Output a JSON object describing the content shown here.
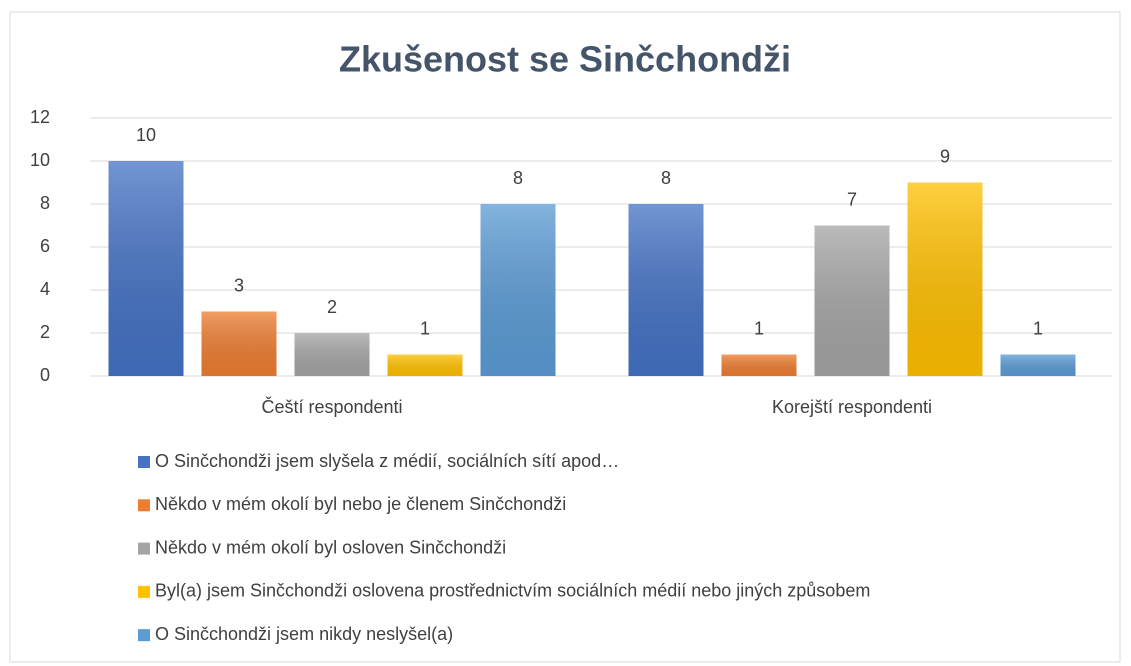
{
  "chart_data": {
    "type": "bar",
    "title": "Zkušenost se Sinčchondži",
    "categories": [
      "Čeští respondenti",
      "Korejští respondenti"
    ],
    "series": [
      {
        "name": "O Sinčchondži jsem slyšela z médií, sociálních sítí apod…",
        "color": "#4472c4",
        "values": [
          10,
          8
        ]
      },
      {
        "name": "Někdo v mém okolí byl nebo je členem Sinčchondži",
        "color": "#ed7d31",
        "values": [
          3,
          1
        ]
      },
      {
        "name": "Někdo v mém okolí byl osloven Sinčchondži",
        "color": "#a5a5a5",
        "values": [
          2,
          7
        ]
      },
      {
        "name": "Byl(a) jsem Sinčchondži oslovena prostřednictvím sociálních médií nebo jiných způsobem",
        "color": "#ffc000",
        "values": [
          1,
          9
        ]
      },
      {
        "name": "O Sinčchondži jsem nikdy neslyšel(a)",
        "color": "#5b9bd5",
        "values": [
          8,
          1
        ]
      }
    ],
    "ylim": [
      0,
      12
    ],
    "yticks": [
      0,
      2,
      4,
      6,
      8,
      10,
      12
    ],
    "grid": true,
    "legend": "bottom"
  }
}
